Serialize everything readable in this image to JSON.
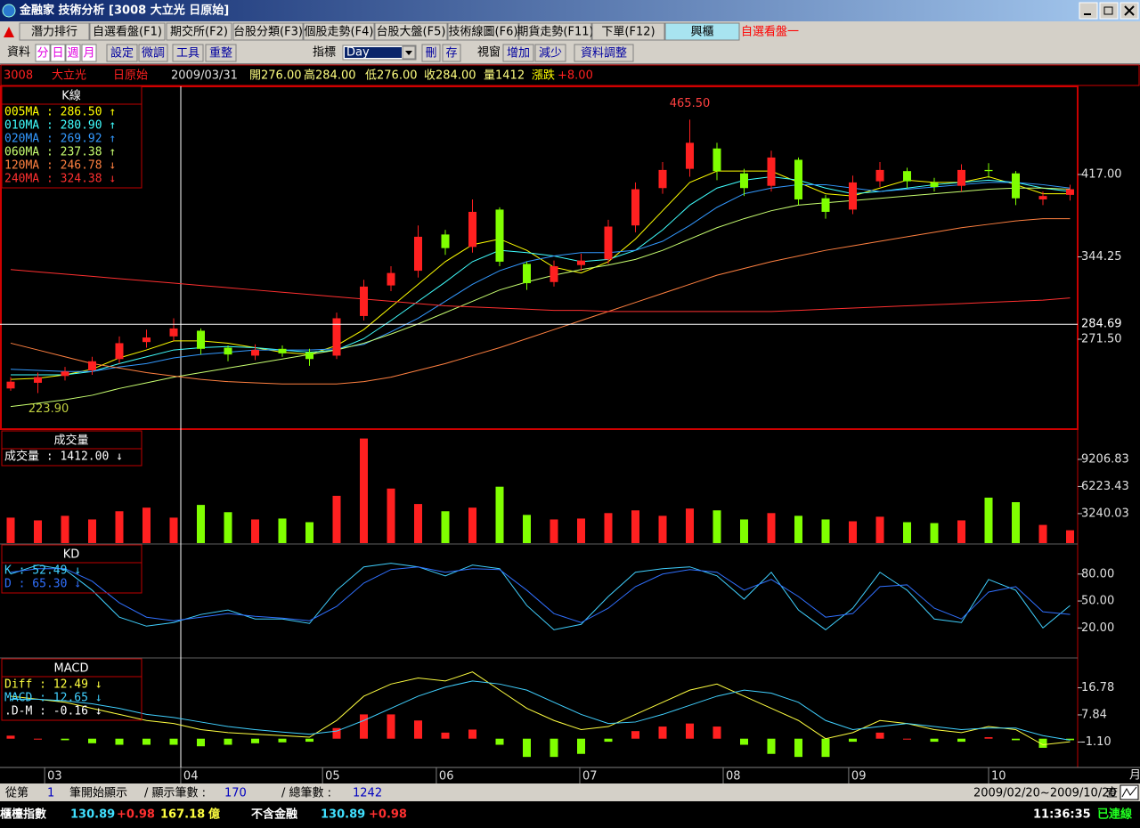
{
  "window": {
    "title": "金融家 技術分析 [3008 大立光 日原始]"
  },
  "tabs": [
    "潛力排行",
    "自選看盤(F1)",
    "期交所(F2)",
    "台股分類(F3)",
    "個股走勢(F4)",
    "台股大盤(F5)",
    "技術線圖(F6)",
    "期貨走勢(F11)",
    "下單(F12)",
    "興櫃"
  ],
  "tab_extra": "自選看盤一",
  "toolbar": {
    "data": "資料",
    "periods": [
      "分",
      "日",
      "週",
      "月"
    ],
    "tools": [
      "設定",
      "微調",
      "工具",
      "重整"
    ],
    "indicator_label": "指標",
    "indicator": "Day",
    "indicator_buttons": [
      "刪",
      "存"
    ],
    "window_label": "視窗",
    "window_buttons": [
      "增加",
      "減少"
    ],
    "adjust": "資料調整"
  },
  "quote": {
    "code": "3008",
    "name": "大立光",
    "mode": "日原始",
    "date": "2009/03/31",
    "open": "開276.00",
    "high": "高284.00",
    "low": "低276.00",
    "close": "收284.00",
    "volume": "量1412",
    "change_label": "漲跌",
    "change": "+8.00"
  },
  "chart_data": [
    {
      "type": "candlestick",
      "title": "K線",
      "up_color": "#ff2020",
      "down_color": "#80ff00",
      "flat_color": "#ffffff",
      "open": [
        228,
        233,
        239,
        244,
        254,
        269,
        274,
        279,
        264,
        257,
        263,
        260,
        257,
        292,
        319,
        332,
        364,
        353,
        386,
        338,
        322,
        337,
        342,
        372,
        405,
        422,
        440,
        418,
        407,
        430,
        396,
        386,
        411,
        420,
        410,
        407,
        421,
        418,
        395,
        399
      ],
      "high": [
        238,
        242,
        247,
        256,
        274,
        280,
        290,
        281,
        266,
        267,
        266,
        263,
        295,
        324,
        336,
        372,
        368,
        395,
        388,
        340,
        341,
        347,
        377,
        410,
        428,
        465.5,
        445,
        422,
        438,
        432,
        399,
        416,
        428,
        423,
        414,
        426,
        427,
        420,
        402,
        408
      ],
      "low": [
        226,
        223.9,
        235,
        240,
        250,
        264,
        270,
        258,
        252,
        253,
        256,
        248,
        254,
        288,
        314,
        326,
        346,
        348,
        336,
        315,
        318,
        332,
        338,
        366,
        400,
        415,
        412,
        398,
        402,
        390,
        378,
        382,
        406,
        405,
        402,
        402,
        414,
        390,
        390,
        394
      ],
      "close": [
        234,
        238,
        243,
        252,
        268,
        273,
        281,
        263,
        258,
        262,
        259,
        254,
        290,
        318,
        330,
        362,
        352,
        384,
        340,
        321,
        336,
        341,
        371,
        404,
        421,
        445,
        420,
        405,
        432,
        395,
        384,
        410,
        421,
        411,
        406,
        421,
        420,
        396,
        398,
        404
      ],
      "series": [
        {
          "name": "005MA : 286.50 ↑",
          "color": "#ffff00",
          "values": [
            236,
            237,
            240,
            245,
            255,
            262,
            270,
            270,
            268,
            264,
            260,
            258,
            266,
            280,
            300,
            320,
            340,
            355,
            360,
            350,
            335,
            330,
            340,
            360,
            385,
            410,
            420,
            420,
            420,
            410,
            400,
            398,
            405,
            412,
            410,
            410,
            415,
            408,
            400,
            400
          ]
        },
        {
          "name": "010MA : 280.90 ↑",
          "color": "#40ffff",
          "values": [
            240,
            240,
            240,
            243,
            250,
            256,
            262,
            264,
            265,
            264,
            262,
            260,
            262,
            272,
            288,
            305,
            322,
            340,
            350,
            348,
            345,
            340,
            342,
            350,
            368,
            390,
            405,
            412,
            415,
            412,
            405,
            400,
            402,
            405,
            408,
            410,
            412,
            410,
            405,
            402
          ]
        },
        {
          "name": "020MA : 269.92 ↑",
          "color": "#3399ff",
          "values": [
            245,
            244,
            243,
            243,
            247,
            250,
            255,
            258,
            260,
            262,
            262,
            262,
            263,
            267,
            278,
            290,
            305,
            320,
            332,
            340,
            345,
            348,
            348,
            350,
            358,
            372,
            388,
            400,
            405,
            408,
            408,
            405,
            402,
            404,
            406,
            408,
            410,
            410,
            408,
            405
          ]
        },
        {
          "name": "060MA : 237.38 ↑",
          "color": "#c8ff70",
          "values": [
            212,
            215,
            218,
            222,
            228,
            233,
            238,
            242,
            246,
            250,
            254,
            258,
            262,
            268,
            276,
            285,
            295,
            305,
            315,
            322,
            328,
            333,
            337,
            342,
            350,
            360,
            370,
            378,
            385,
            390,
            392,
            394,
            396,
            398,
            400,
            402,
            404,
            405,
            405,
            404
          ]
        },
        {
          "name": "120MA : 246.78 ↓",
          "color": "#ff8040",
          "values": [
            268,
            262,
            256,
            250,
            246,
            242,
            239,
            236,
            234,
            233,
            232,
            232,
            232,
            234,
            238,
            244,
            250,
            257,
            264,
            272,
            280,
            288,
            296,
            304,
            312,
            320,
            328,
            334,
            340,
            345,
            350,
            354,
            358,
            362,
            366,
            370,
            373,
            376,
            378,
            378
          ]
        },
        {
          "name": "240MA : 324.38 ↓",
          "color": "#ff3030",
          "values": [
            333,
            331,
            329,
            327,
            325,
            323,
            321,
            319,
            317,
            315,
            313,
            311,
            309,
            307,
            305,
            303,
            301,
            300,
            299,
            298,
            297,
            297,
            296,
            296,
            296,
            296,
            296,
            296,
            296,
            297,
            298,
            299,
            300,
            301,
            302,
            303,
            304,
            305,
            306,
            308
          ]
        }
      ],
      "annotations": [
        {
          "value": 465.5,
          "label": "465.50"
        },
        {
          "value": 223.9,
          "label": "223.90"
        }
      ],
      "crosshair": {
        "value": 284.69,
        "label": "284.69"
      },
      "ylim": [
        192.85,
        494.07
      ],
      "yticks": [
        {
          "value": 417,
          "label": "417.00"
        },
        344.25,
        {
          "value": 271.5,
          "label": "271.50"
        }
      ]
    },
    {
      "type": "bar",
      "title": "成交量",
      "legend": "成交量 : 1412.00 ↓",
      "values": [
        2800,
        2500,
        3000,
        2600,
        3500,
        3900,
        2800,
        4200,
        3400,
        2600,
        2700,
        2300,
        5200,
        11500,
        6000,
        4300,
        3500,
        3900,
        6200,
        3100,
        2600,
        2700,
        3300,
        3600,
        3000,
        3800,
        3600,
        2600,
        3300,
        3000,
        2600,
        2400,
        2900,
        2300,
        2200,
        2500,
        5000,
        4500,
        2000,
        1412
      ],
      "ylim": [
        0,
        12240
      ],
      "yticks": [
        9206.83,
        6223.43,
        3240.03
      ]
    },
    {
      "type": "line",
      "title": "KD",
      "series": [
        {
          "name": "K : 52.49 ↓",
          "color": "#40d0ff",
          "values": [
            80,
            90,
            85,
            62,
            32,
            22,
            26,
            35,
            40,
            30,
            30,
            25,
            62,
            88,
            92,
            88,
            78,
            90,
            86,
            45,
            18,
            24,
            55,
            82,
            86,
            88,
            78,
            52,
            82,
            40,
            18,
            42,
            82,
            62,
            30,
            26,
            74,
            62,
            20,
            45
          ]
        },
        {
          "name": "D : 65.30 ↓",
          "color": "#3070ff",
          "values": [
            82,
            86,
            86,
            72,
            48,
            32,
            28,
            32,
            36,
            33,
            31,
            28,
            44,
            70,
            85,
            88,
            82,
            86,
            85,
            62,
            36,
            26,
            42,
            66,
            80,
            85,
            82,
            62,
            74,
            55,
            32,
            36,
            66,
            68,
            42,
            30,
            60,
            66,
            38,
            35
          ]
        }
      ],
      "ylim": [
        -12.4,
        111.5
      ],
      "yticks": [
        {
          "value": 80,
          "label": "80.00"
        },
        {
          "value": 50,
          "label": "50.00"
        },
        {
          "value": 20,
          "label": "20.00"
        }
      ]
    },
    {
      "type": "line",
      "title": "MACD",
      "series": [
        {
          "name": "Diff : 12.49 ↓",
          "color": "#ffff40",
          "values": [
            14,
            13,
            12,
            10,
            8,
            6,
            5,
            3,
            2,
            1.5,
            1,
            0.5,
            6,
            14,
            18,
            20,
            19,
            22,
            16,
            10,
            6,
            3,
            4,
            8,
            12,
            16,
            18,
            14,
            10,
            6,
            0,
            2,
            6,
            5,
            3,
            2,
            4,
            3,
            -2,
            -1
          ]
        },
        {
          "name": "MACD : 12.65 ↓",
          "color": "#40d0ff",
          "values": [
            13,
            13,
            12.5,
            11.5,
            10,
            8,
            7,
            5.5,
            4,
            3,
            2.2,
            1.5,
            2.5,
            6,
            10,
            14,
            17,
            19,
            18,
            16,
            12,
            8,
            5,
            5.5,
            8,
            11,
            14,
            16,
            15,
            12,
            6,
            3,
            4,
            5,
            4,
            3,
            3.5,
            3.5,
            1,
            -0.5
          ]
        }
      ],
      "histogram": {
        "name": ".D-M : -0.16 ↓",
        "color": "#ffffff",
        "up_color": "#ff2020",
        "down_color": "#80ff00",
        "values": [
          1,
          0,
          -0.5,
          -1.5,
          -2,
          -2,
          -2,
          -2.5,
          -2,
          -1.5,
          -1.2,
          -1,
          3.5,
          8,
          8,
          6,
          2,
          3,
          -2,
          -6,
          -6,
          -5,
          -1,
          2.5,
          4,
          5,
          4,
          -2,
          -5,
          -6,
          -6,
          -1,
          2,
          0,
          -1,
          -1,
          0.5,
          -0.5,
          -3,
          -0.5
        ]
      },
      "ylim": [
        -9.18,
        26.01
      ],
      "yticks": [
        16.78,
        7.84,
        {
          "value": -1.1,
          "label": "-1.10"
        }
      ],
      "xticks": [
        {
          "value": 1.25,
          "label": "03"
        },
        {
          "value": 6.26,
          "label": "04"
        },
        {
          "value": 11.48,
          "label": "05"
        },
        {
          "value": 15.67,
          "label": "06"
        },
        {
          "value": 20.95,
          "label": "07"
        },
        {
          "value": 26.23,
          "label": "08"
        },
        {
          "value": 30.85,
          "label": "09"
        },
        {
          "value": 36.0,
          "label": "10"
        }
      ],
      "xlabel": "月"
    }
  ],
  "status": {
    "from": "從第",
    "start": "1",
    "start_text": "筆開始顯示",
    "shown_label": "/ 顯示筆數 :",
    "shown": "170",
    "total_label": "/ 總筆數 :",
    "total": "1242",
    "range": "2009/02/20~2009/10/20",
    "query": "查"
  },
  "ticker": {
    "name": "櫃檯指數",
    "index": "130.89",
    "change": "+0.98",
    "amount": "167.18",
    "unit": "億",
    "ex_label": "不含金融",
    "ex_index": "130.89",
    "ex_change": "+0.98",
    "time": "11:36:35",
    "connection": "已連線"
  }
}
